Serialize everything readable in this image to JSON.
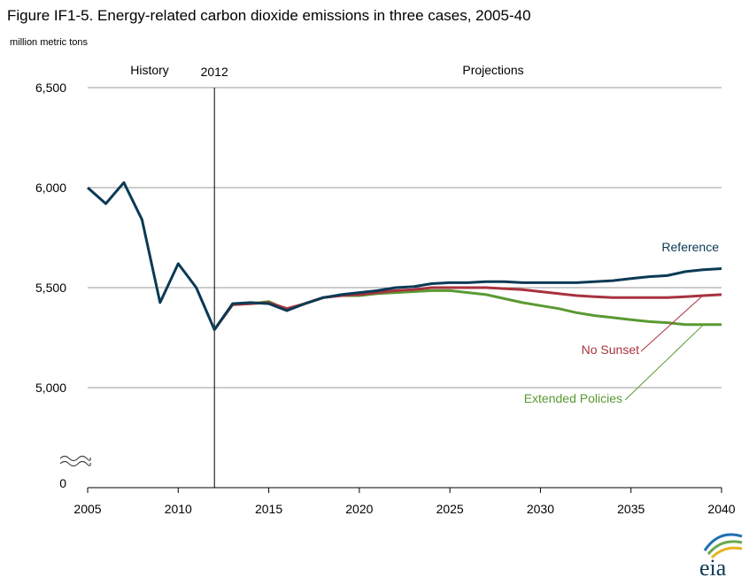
{
  "title": "Figure IF1-5. Energy-related carbon dioxide emissions in three cases, 2005-40",
  "units": "million metric tons",
  "chart_data": {
    "type": "line",
    "title": "Figure IF1-5. Energy-related carbon dioxide emissions in three cases, 2005-40",
    "ylabel": "million metric tons",
    "xlabel": "",
    "xlim": [
      2005,
      2040
    ],
    "ylim_display": [
      5000,
      6500
    ],
    "axis_break": true,
    "y_ticks": [
      "6,500",
      "6,000",
      "5,500",
      "5,000",
      "0"
    ],
    "x_ticks": [
      "2005",
      "2010",
      "2015",
      "2020",
      "2025",
      "2030",
      "2035",
      "2040"
    ],
    "divider": {
      "x": 2012,
      "label": "2012"
    },
    "region_labels": {
      "history": "History",
      "projections": "Projections"
    },
    "grid": "horizontal",
    "series": [
      {
        "name": "Reference",
        "color": "#0b3a55",
        "x": [
          2005,
          2006,
          2007,
          2008,
          2009,
          2010,
          2011,
          2012,
          2013,
          2014,
          2015,
          2016,
          2017,
          2018,
          2019,
          2020,
          2021,
          2022,
          2023,
          2024,
          2025,
          2026,
          2027,
          2028,
          2029,
          2030,
          2031,
          2032,
          2033,
          2034,
          2035,
          2036,
          2037,
          2038,
          2039,
          2040
        ],
        "values": [
          6000,
          5920,
          6025,
          5840,
          5425,
          5620,
          5500,
          5290,
          5420,
          5425,
          5420,
          5385,
          5420,
          5450,
          5465,
          5475,
          5485,
          5500,
          5505,
          5520,
          5525,
          5525,
          5530,
          5530,
          5525,
          5525,
          5525,
          5525,
          5530,
          5535,
          5545,
          5555,
          5560,
          5580,
          5590,
          5595
        ]
      },
      {
        "name": "No Sunset",
        "color": "#a8323e",
        "x": [
          2012,
          2013,
          2014,
          2015,
          2016,
          2017,
          2018,
          2019,
          2020,
          2021,
          2022,
          2023,
          2024,
          2025,
          2026,
          2027,
          2028,
          2029,
          2030,
          2031,
          2032,
          2033,
          2034,
          2035,
          2036,
          2037,
          2038,
          2039,
          2040
        ],
        "values": [
          5290,
          5415,
          5420,
          5425,
          5395,
          5420,
          5450,
          5460,
          5465,
          5475,
          5485,
          5490,
          5500,
          5500,
          5500,
          5500,
          5495,
          5490,
          5480,
          5470,
          5460,
          5455,
          5450,
          5450,
          5450,
          5450,
          5455,
          5460,
          5465
        ]
      },
      {
        "name": "Extended Policies",
        "color": "#5a9a32",
        "x": [
          2012,
          2013,
          2014,
          2015,
          2016,
          2017,
          2018,
          2019,
          2020,
          2021,
          2022,
          2023,
          2024,
          2025,
          2026,
          2027,
          2028,
          2029,
          2030,
          2031,
          2032,
          2033,
          2034,
          2035,
          2036,
          2037,
          2038,
          2039,
          2040
        ],
        "values": [
          5290,
          5415,
          5420,
          5430,
          5390,
          5420,
          5450,
          5460,
          5460,
          5470,
          5475,
          5480,
          5485,
          5485,
          5475,
          5465,
          5445,
          5425,
          5410,
          5395,
          5375,
          5360,
          5350,
          5340,
          5330,
          5325,
          5315,
          5315,
          5315
        ]
      }
    ]
  },
  "logo_text": "eia"
}
